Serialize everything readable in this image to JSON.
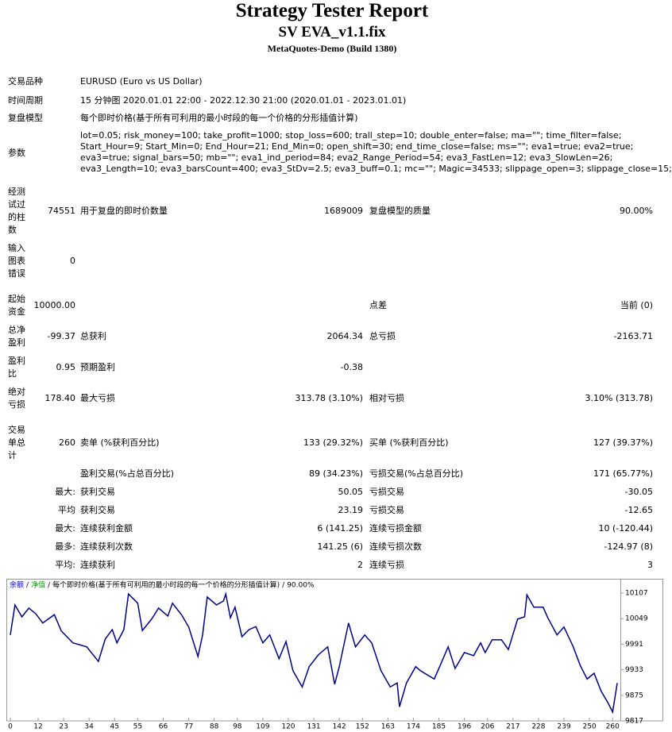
{
  "header": {
    "title": "Strategy Tester Report",
    "subtitle": "SV EVA_v1.1.fix",
    "build": "MetaQuotes-Demo (Build 1380)"
  },
  "settings": [
    [
      "交易品种",
      "EURUSD (Euro vs US Dollar)"
    ],
    [
      "时间周期",
      "15 分钟图 2020.01.01 22:00 - 2022.12.30 21:00 (2020.01.01 - 2023.01.01)"
    ],
    [
      "复盘模型",
      "每个即时价格(基于所有可利用的最小时段的每一个价格的分形插值计算)"
    ]
  ],
  "parameters": {
    "label": "参数",
    "lines": [
      "lot=0.05; risk_money=100; take_profit=1000; stop_loss=600; trall_step=10; double_enter=false; ma=\"\"; time_filter=false;",
      "Start_Hour=9; Start_Min=0; End_Hour=21; End_Min=0; open_shift=30; end_time_close=false; ms=\"\"; eva1=true; eva2=true;",
      "eva3=true; signal_bars=50; mb=\"\"; eva1_ind_period=84; eva2_Range_Period=54; eva3_FastLen=12; eva3_SlowLen=26;",
      "eva3_Length=10; eva3_barsCount=400; eva3_StDv=2.5; eva3_buff=0.1; mc=\"\"; Magic=34533; slippage_open=3; slippage_close=15;"
    ]
  },
  "rows": [
    {
      "label": "经测试过的柱数",
      "value": "74551",
      "name2": "用于复盘的即时价数量",
      "value2": "1689009",
      "name3": "复盘模型的质量",
      "value3": "90.00%"
    },
    {
      "label": "输入图表错误",
      "value": "0"
    },
    {
      "label": "起始资金",
      "value": "10000.00",
      "name3": "点差",
      "value3": "当前 (0)"
    },
    {
      "label": "总净盈利",
      "value": "-99.37",
      "name2": "总获利",
      "value2": "2064.34",
      "name3": "总亏损",
      "value3": "-2163.71"
    },
    {
      "label": "盈利比",
      "value": "0.95",
      "name2": "预期盈利",
      "value2": "-0.38"
    },
    {
      "label": "绝对亏损",
      "value": "178.40",
      "name2": "最大亏损",
      "value2": "313.78 (3.10%)",
      "name3": "相对亏损",
      "value3": "3.10% (313.78)"
    },
    {
      "label": "交易单总计",
      "value": "260",
      "name2": "卖单 (%获利百分比)",
      "value2": "133 (29.32%)",
      "name3": "买单 (%获利百分比)",
      "value3": "127 (39.37%)"
    },
    {
      "name2": "盈利交易(%占总百分比)",
      "value2": "89 (34.23%)",
      "name3": "亏损交易(%占总百分比)",
      "value3": "171 (65.77%)"
    },
    {
      "prefix": "最大:",
      "name2": "获利交易",
      "value2": "50.05",
      "name3": "亏损交易",
      "value3": "-30.05"
    },
    {
      "prefix": "平均",
      "name2": "获利交易",
      "value2": "23.19",
      "name3": "亏损交易",
      "value3": "-12.65"
    },
    {
      "prefix": "最大:",
      "name2": "连续获利金额",
      "value2": "6 (141.25)",
      "name3": "连续亏损金额",
      "value3": "10 (-120.44)"
    },
    {
      "prefix": "最多:",
      "name2": "连续获利次数",
      "value2": "141.25 (6)",
      "name3": "连续亏损次数",
      "value3": "-124.97 (8)"
    },
    {
      "prefix": "平均:",
      "name2": "连续获利",
      "value2": "2",
      "name3": "连续亏损",
      "value3": "3"
    }
  ],
  "chart": {
    "type": "line",
    "separator": "/",
    "equity": {
      "name": "净值",
      "color": "#00a000"
    },
    "legend_extra": [
      "每个即时价格(基于所有可利用的最小时段的每一个价格的分形插值计算)",
      "90.00%"
    ],
    "xlim": [
      0,
      263
    ],
    "xticks": [
      0,
      12,
      23,
      34,
      45,
      55,
      66,
      77,
      88,
      98,
      109,
      120,
      131,
      142,
      152,
      163,
      174,
      185,
      196,
      206,
      217,
      228,
      239,
      250,
      260
    ],
    "ylim": [
      9817,
      10120
    ],
    "yticks": [
      9817,
      9875,
      9933,
      9991,
      10049,
      10107
    ],
    "x": [
      0,
      2,
      5,
      8,
      11,
      14,
      19,
      22,
      27,
      33,
      38,
      41,
      44,
      46,
      49,
      51,
      55,
      57,
      61,
      64,
      68,
      70,
      74,
      77,
      81,
      83,
      85,
      89,
      92,
      93,
      95,
      97,
      100,
      103,
      106,
      109,
      112,
      116,
      119,
      122,
      126,
      129,
      133,
      137,
      140,
      142,
      146,
      149,
      153,
      156,
      160,
      164,
      167,
      168,
      171,
      175,
      177,
      183,
      185,
      189,
      192,
      196,
      200,
      203,
      205,
      208,
      212,
      215,
      219,
      222,
      223,
      226,
      230,
      232,
      236,
      239,
      243,
      246,
      249,
      252,
      255,
      258,
      260,
      262
    ],
    "series": [
      {
        "name": "余额",
        "color": "#00008b",
        "values": [
          10012,
          10080,
          10053,
          10073,
          10060,
          10039,
          10058,
          10021,
          9994,
          9985,
          9952,
          10003,
          10024,
          9994,
          10024,
          10105,
          10084,
          10022,
          10048,
          10073,
          10055,
          10084,
          10057,
          10030,
          9963,
          10012,
          10098,
          10080,
          10089,
          10105,
          10051,
          10075,
          10008,
          10024,
          10031,
          9994,
          10012,
          9958,
          9997,
          9931,
          9894,
          9940,
          9967,
          9985,
          9900,
          9940,
          10039,
          9985,
          10012,
          9994,
          9931,
          9894,
          9903,
          9849,
          9903,
          9940,
          9931,
          9912,
          9936,
          9985,
          9936,
          9972,
          9965,
          9994,
          9972,
          10001,
          10001,
          9979,
          10048,
          10053,
          10103,
          10075,
          10075,
          10051,
          10012,
          10030,
          9985,
          9943,
          9912,
          9925,
          9885,
          9858,
          9837,
          9903
        ]
      }
    ]
  }
}
